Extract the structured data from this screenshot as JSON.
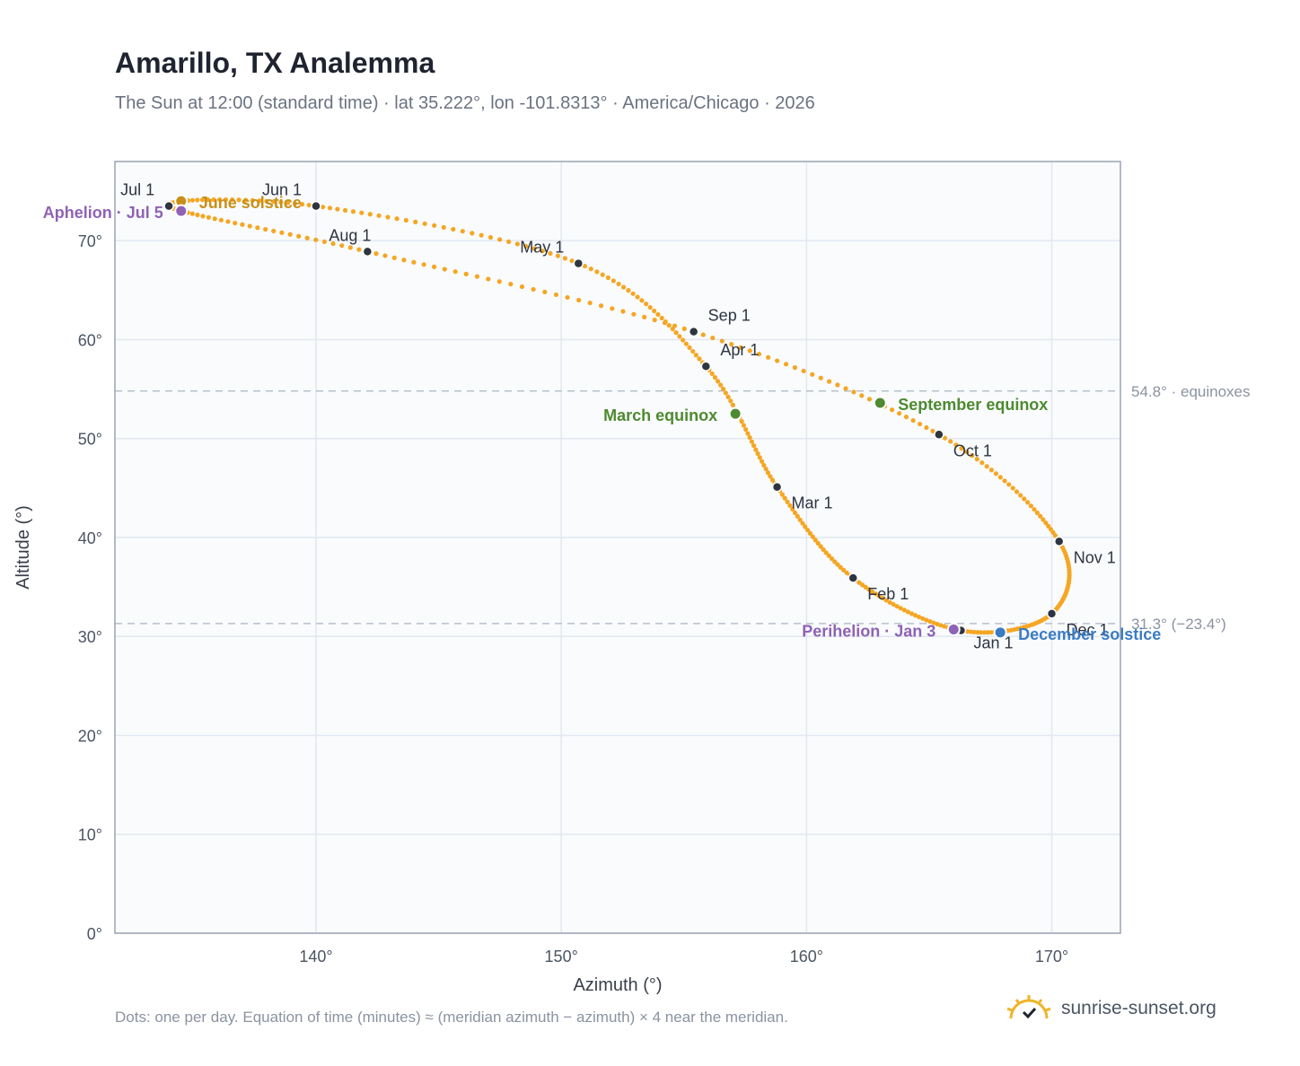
{
  "header": {
    "title": "Amarillo, TX Analemma",
    "subtitle": "The Sun at 12:00 (standard time) · lat 35.222°, lon -101.8313° · America/Chicago · 2026"
  },
  "chart_data": {
    "type": "scatter",
    "xlabel": "Azimuth (°)",
    "ylabel": "Altitude (°)",
    "xlim": [
      131.8,
      172.8
    ],
    "ylim": [
      0,
      78
    ],
    "x_ticks": [
      140,
      150,
      160,
      170
    ],
    "x_tick_labels": [
      "140°",
      "150°",
      "160°",
      "170°"
    ],
    "y_ticks": [
      0,
      10,
      20,
      30,
      40,
      50,
      60,
      70
    ],
    "y_tick_labels": [
      "0°",
      "10°",
      "20°",
      "30°",
      "40°",
      "50°",
      "60°",
      "70°"
    ],
    "grid": true,
    "series": [
      {
        "style": "one dot per day",
        "color": "#f5a623",
        "points": [
          {
            "month": "Jan",
            "x": 166.3,
            "y": 30.6
          },
          {
            "month": "Feb",
            "x": 161.9,
            "y": 35.9
          },
          {
            "month": "Mar",
            "x": 158.8,
            "y": 45.1
          },
          {
            "month": "Apr",
            "x": 155.9,
            "y": 57.3
          },
          {
            "month": "May",
            "x": 150.7,
            "y": 67.7
          },
          {
            "month": "Jun",
            "x": 140.0,
            "y": 73.5
          },
          {
            "month": "Jul",
            "x": 134.0,
            "y": 73.5
          },
          {
            "month": "Aug",
            "x": 142.1,
            "y": 68.9
          },
          {
            "month": "Sep",
            "x": 155.4,
            "y": 60.8
          },
          {
            "month": "Oct",
            "x": 165.4,
            "y": 50.4
          },
          {
            "month": "Nov",
            "x": 170.3,
            "y": 39.6
          },
          {
            "month": "Dec",
            "x": 170.0,
            "y": 32.3
          }
        ]
      }
    ],
    "month_markers": [
      {
        "label": "Jan 1",
        "x": 166.3,
        "y": 30.6
      },
      {
        "label": "Feb 1",
        "x": 161.9,
        "y": 35.9
      },
      {
        "label": "Mar 1",
        "x": 158.8,
        "y": 45.1
      },
      {
        "label": "Apr 1",
        "x": 155.9,
        "y": 57.3
      },
      {
        "label": "May 1",
        "x": 150.7,
        "y": 67.7
      },
      {
        "label": "Jun 1",
        "x": 140.0,
        "y": 73.5
      },
      {
        "label": "Jul 1",
        "x": 134.0,
        "y": 73.5
      },
      {
        "label": "Aug 1",
        "x": 142.1,
        "y": 68.9
      },
      {
        "label": "Sep 1",
        "x": 155.4,
        "y": 60.8
      },
      {
        "label": "Oct 1",
        "x": 165.4,
        "y": 50.4
      },
      {
        "label": "Nov 1",
        "x": 170.3,
        "y": 39.6
      },
      {
        "label": "Dec 1",
        "x": 170.0,
        "y": 32.3
      }
    ],
    "events": [
      {
        "label": "June solstice",
        "x": 134.5,
        "y": 74.0,
        "color": "#c8901a"
      },
      {
        "label": "Aphelion · Jul 5",
        "x": 134.5,
        "y": 73.0,
        "color": "#8e62b5"
      },
      {
        "label": "March equinox",
        "x": 157.1,
        "y": 52.5,
        "color": "#4e8a2f"
      },
      {
        "label": "September equinox",
        "x": 163.0,
        "y": 53.6,
        "color": "#4e8a2f"
      },
      {
        "label": "Perihelion · Jan 3",
        "x": 166.0,
        "y": 30.7,
        "color": "#8e62b5"
      },
      {
        "label": "December solstice",
        "x": 167.9,
        "y": 30.4,
        "color": "#3a7cc4"
      }
    ],
    "reference_lines": [
      {
        "y": 54.8,
        "label": "54.8° · equinoxes"
      },
      {
        "y": 31.3,
        "label": "31.3° (−23.4°)"
      }
    ]
  },
  "footer": {
    "note": "Dots: one per day. Equation of time (minutes) ≈ (meridian azimuth − azimuth) × 4 near the meridian.",
    "brand": "sunrise-sunset.org"
  }
}
